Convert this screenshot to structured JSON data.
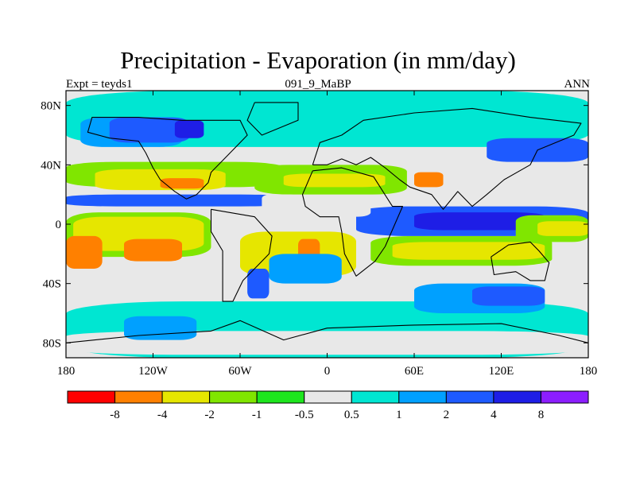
{
  "title": "Precipitation - Evaporation (in mm/day)",
  "subtitle_left": "Expt = teyds1",
  "subtitle_center": "091_9_MaBP",
  "subtitle_right": "ANN",
  "map": {
    "lon_range": [
      -180,
      180
    ],
    "lat_range": [
      -90,
      90
    ],
    "lat_ticks": [
      {
        "value": 80,
        "label": "80N"
      },
      {
        "value": 40,
        "label": "40N"
      },
      {
        "value": 0,
        "label": "0"
      },
      {
        "value": -40,
        "label": "40S"
      },
      {
        "value": -80,
        "label": "80S"
      }
    ],
    "lon_ticks": [
      {
        "value": -180,
        "label": "180"
      },
      {
        "value": -120,
        "label": "120W"
      },
      {
        "value": -60,
        "label": "60W"
      },
      {
        "value": 0,
        "label": "0"
      },
      {
        "value": 60,
        "label": "60E"
      },
      {
        "value": 120,
        "label": "120E"
      },
      {
        "value": 180,
        "label": "180"
      }
    ],
    "background_color": "#e8e8e8",
    "colors": {
      "lt_-8": "#ff0000",
      "-8_-4": "#ff8000",
      "-4_-2": "#e6e600",
      "-2_-1": "#80e600",
      "-1_-0.5": "#1ee61e",
      "-0.5_0.5": "#e8e8e8",
      "0.5_1": "#00e6d2",
      "1_2": "#00a0ff",
      "2_4": "#1e5aff",
      "4_8": "#1e1ee6",
      "gt_8": "#8c1eff"
    },
    "features": [
      {
        "lon": [
          -180,
          180
        ],
        "lat": [
          52,
          90
        ],
        "level": "0.5_1"
      },
      {
        "lon": [
          -180,
          180
        ],
        "lat": [
          -90,
          -52
        ],
        "level": "0.5_1"
      },
      {
        "lon": [
          -170,
          -100
        ],
        "lat": [
          52,
          72
        ],
        "level": "1_2"
      },
      {
        "lon": [
          -150,
          -95
        ],
        "lat": [
          55,
          72
        ],
        "level": "2_4"
      },
      {
        "lon": [
          -105,
          -85
        ],
        "lat": [
          58,
          70
        ],
        "level": "4_8"
      },
      {
        "lon": [
          -180,
          -30
        ],
        "lat": [
          25,
          42
        ],
        "level": "-2_-1"
      },
      {
        "lon": [
          -160,
          -70
        ],
        "lat": [
          23,
          37
        ],
        "level": "-4_-2"
      },
      {
        "lon": [
          -115,
          -85
        ],
        "lat": [
          24,
          31
        ],
        "level": "-8_-4"
      },
      {
        "lon": [
          -180,
          -25
        ],
        "lat": [
          12,
          20
        ],
        "level": "2_4"
      },
      {
        "lon": [
          -180,
          -80
        ],
        "lat": [
          -22,
          8
        ],
        "level": "-2_-1"
      },
      {
        "lon": [
          -175,
          -85
        ],
        "lat": [
          -18,
          5
        ],
        "level": "-4_-2"
      },
      {
        "lon": [
          -140,
          -100
        ],
        "lat": [
          -25,
          -10
        ],
        "level": "-8_-4"
      },
      {
        "lon": [
          -180,
          -155
        ],
        "lat": [
          -30,
          -8
        ],
        "level": "-8_-4"
      },
      {
        "lon": [
          -60,
          20
        ],
        "lat": [
          -35,
          -5
        ],
        "level": "-4_-2"
      },
      {
        "lon": [
          -20,
          -5
        ],
        "lat": [
          -28,
          -10
        ],
        "level": "-8_-4"
      },
      {
        "lon": [
          30,
          155
        ],
        "lat": [
          -28,
          -8
        ],
        "level": "-2_-1"
      },
      {
        "lon": [
          45,
          150
        ],
        "lat": [
          -24,
          -12
        ],
        "level": "-4_-2"
      },
      {
        "lon": [
          20,
          180
        ],
        "lat": [
          -8,
          12
        ],
        "level": "2_4"
      },
      {
        "lon": [
          60,
          150
        ],
        "lat": [
          -4,
          8
        ],
        "level": "4_8"
      },
      {
        "lon": [
          130,
          180
        ],
        "lat": [
          -12,
          6
        ],
        "level": "-2_-1"
      },
      {
        "lon": [
          145,
          180
        ],
        "lat": [
          -8,
          2
        ],
        "level": "-4_-2"
      },
      {
        "lon": [
          -50,
          55
        ],
        "lat": [
          20,
          40
        ],
        "level": "-2_-1"
      },
      {
        "lon": [
          -30,
          40
        ],
        "lat": [
          25,
          34
        ],
        "level": "-4_-2"
      },
      {
        "lon": [
          60,
          80
        ],
        "lat": [
          25,
          35
        ],
        "level": "-8_-4"
      },
      {
        "lon": [
          110,
          180
        ],
        "lat": [
          42,
          58
        ],
        "level": "2_4"
      },
      {
        "lon": [
          -45,
          -20
        ],
        "lat": [
          8,
          20
        ],
        "level": "-0.5_0.5"
      },
      {
        "lon": [
          -10,
          30
        ],
        "lat": [
          5,
          18
        ],
        "level": "-0.5_0.5"
      },
      {
        "lon": [
          -55,
          -40
        ],
        "lat": [
          -50,
          -30
        ],
        "level": "2_4"
      },
      {
        "lon": [
          -40,
          10
        ],
        "lat": [
          -40,
          -20
        ],
        "level": "1_2"
      },
      {
        "lon": [
          60,
          150
        ],
        "lat": [
          -60,
          -40
        ],
        "level": "1_2"
      },
      {
        "lon": [
          100,
          150
        ],
        "lat": [
          -55,
          -42
        ],
        "level": "2_4"
      },
      {
        "lon": [
          -180,
          180
        ],
        "lat": [
          -88,
          -72
        ],
        "level": "-0.5_0.5"
      },
      {
        "lon": [
          -140,
          -90
        ],
        "lat": [
          -78,
          -62
        ],
        "level": "1_2"
      }
    ],
    "coast": [
      [
        [
          -100,
          70
        ],
        [
          -60,
          70
        ],
        [
          -55,
          60
        ],
        [
          -65,
          50
        ],
        [
          -80,
          35
        ],
        [
          -82,
          28
        ],
        [
          -90,
          20
        ],
        [
          -97,
          17
        ],
        [
          -105,
          22
        ],
        [
          -115,
          30
        ],
        [
          -120,
          38
        ],
        [
          -125,
          48
        ],
        [
          -130,
          56
        ],
        [
          -150,
          58
        ],
        [
          -165,
          62
        ],
        [
          -162,
          72
        ],
        [
          -130,
          72
        ],
        [
          -100,
          70
        ]
      ],
      [
        [
          -80,
          10
        ],
        [
          -50,
          5
        ],
        [
          -38,
          -8
        ],
        [
          -40,
          -20
        ],
        [
          -48,
          -28
        ],
        [
          -58,
          -38
        ],
        [
          -65,
          -52
        ],
        [
          -72,
          -52
        ],
        [
          -72,
          -35
        ],
        [
          -72,
          -18
        ],
        [
          -80,
          -5
        ],
        [
          -80,
          10
        ]
      ],
      [
        [
          -10,
          36
        ],
        [
          10,
          38
        ],
        [
          32,
          32
        ],
        [
          45,
          12
        ],
        [
          52,
          12
        ],
        [
          40,
          -15
        ],
        [
          33,
          -25
        ],
        [
          20,
          -35
        ],
        [
          12,
          -20
        ],
        [
          10,
          -5
        ],
        [
          8,
          5
        ],
        [
          -5,
          5
        ],
        [
          -15,
          12
        ],
        [
          -17,
          20
        ],
        [
          -10,
          36
        ]
      ],
      [
        [
          -10,
          40
        ],
        [
          -5,
          55
        ],
        [
          10,
          60
        ],
        [
          25,
          70
        ],
        [
          60,
          75
        ],
        [
          100,
          78
        ],
        [
          140,
          72
        ],
        [
          175,
          68
        ],
        [
          170,
          60
        ],
        [
          145,
          50
        ],
        [
          140,
          40
        ],
        [
          122,
          30
        ],
        [
          110,
          20
        ],
        [
          100,
          12
        ],
        [
          90,
          22
        ],
        [
          80,
          10
        ],
        [
          72,
          20
        ],
        [
          57,
          25
        ],
        [
          50,
          30
        ],
        [
          40,
          38
        ],
        [
          30,
          45
        ],
        [
          20,
          40
        ],
        [
          10,
          44
        ],
        [
          0,
          40
        ],
        [
          -10,
          40
        ]
      ],
      [
        [
          113,
          -22
        ],
        [
          125,
          -14
        ],
        [
          140,
          -12
        ],
        [
          146,
          -18
        ],
        [
          153,
          -26
        ],
        [
          150,
          -38
        ],
        [
          140,
          -38
        ],
        [
          130,
          -32
        ],
        [
          115,
          -34
        ],
        [
          113,
          -22
        ]
      ],
      [
        [
          -50,
          82
        ],
        [
          -20,
          82
        ],
        [
          -20,
          70
        ],
        [
          -45,
          60
        ],
        [
          -55,
          70
        ],
        [
          -50,
          82
        ]
      ],
      [
        [
          -180,
          -80
        ],
        [
          -130,
          -75
        ],
        [
          -80,
          -72
        ],
        [
          -60,
          -65
        ],
        [
          -30,
          -78
        ],
        [
          0,
          -70
        ],
        [
          60,
          -68
        ],
        [
          120,
          -67
        ],
        [
          160,
          -75
        ],
        [
          180,
          -80
        ]
      ]
    ]
  },
  "colorbar": {
    "labels": [
      "-8",
      "-4",
      "-2",
      "-1",
      "-0.5",
      "0.5",
      "1",
      "2",
      "4",
      "8"
    ],
    "colors": [
      "#ff0000",
      "#ff8000",
      "#e6e600",
      "#80e600",
      "#1ee61e",
      "#e8e8e8",
      "#00e6d2",
      "#00a0ff",
      "#1e5aff",
      "#1e1ee6",
      "#8c1eff"
    ]
  }
}
